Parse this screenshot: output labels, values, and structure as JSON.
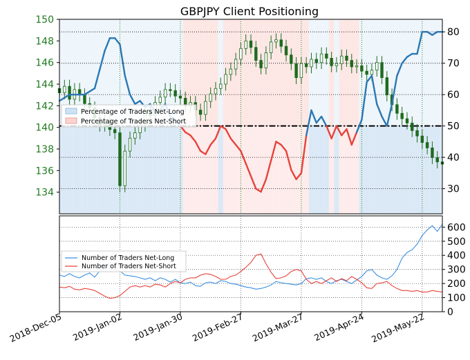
{
  "chart_data": [
    {
      "type": "line",
      "panel": "top",
      "title": "GBPJPY Client Positioning",
      "left_axis": {
        "ticks": [
          134,
          136,
          138,
          140,
          142,
          144,
          146,
          148,
          150
        ],
        "range": [
          132,
          150
        ],
        "color": "#1f7a1f"
      },
      "right_axis": {
        "ticks": [
          30,
          40,
          50,
          60,
          70,
          80
        ],
        "range": [
          22,
          84
        ]
      },
      "reference_line": {
        "value": 50,
        "style": "dash-dot"
      },
      "legend": {
        "placement": "middle-left",
        "entries": [
          "Percentage of Traders Net-Long",
          "Percentage of Traders Net-Short"
        ]
      },
      "colors": {
        "net_long": "#2a77b4",
        "net_short": "#e8423a",
        "long_fill": "#cfe2f3",
        "short_fill": "#fbd4d0",
        "candle": "#1e6b1e"
      },
      "x": [
        "2018-Dec-05",
        "2018-Dec-07",
        "2018-Dec-10",
        "2018-Dec-12",
        "2018-Dec-14",
        "2018-Dec-17",
        "2018-Dec-19",
        "2018-Dec-21",
        "2018-Dec-24",
        "2018-Dec-26",
        "2018-Dec-28",
        "2018-Dec-31",
        "2019-Jan-02",
        "2019-Jan-04",
        "2019-Jan-07",
        "2019-Jan-09",
        "2019-Jan-11",
        "2019-Jan-14",
        "2019-Jan-16",
        "2019-Jan-18",
        "2019-Jan-21",
        "2019-Jan-23",
        "2019-Jan-25",
        "2019-Jan-28",
        "2019-Jan-30",
        "2019-Feb-01",
        "2019-Feb-04",
        "2019-Feb-06",
        "2019-Feb-08",
        "2019-Feb-11",
        "2019-Feb-13",
        "2019-Feb-15",
        "2019-Feb-18",
        "2019-Feb-20",
        "2019-Feb-22",
        "2019-Feb-25",
        "2019-Feb-27",
        "2019-Mar-01",
        "2019-Mar-04",
        "2019-Mar-06",
        "2019-Mar-08",
        "2019-Mar-11",
        "2019-Mar-13",
        "2019-Mar-15",
        "2019-Mar-18",
        "2019-Mar-20",
        "2019-Mar-22",
        "2019-Mar-25",
        "2019-Mar-27",
        "2019-Mar-29",
        "2019-Apr-01",
        "2019-Apr-03",
        "2019-Apr-05",
        "2019-Apr-08",
        "2019-Apr-10",
        "2019-Apr-12",
        "2019-Apr-15",
        "2019-Apr-17",
        "2019-Apr-19",
        "2019-Apr-22",
        "2019-Apr-24",
        "2019-Apr-26",
        "2019-Apr-29",
        "2019-May-01",
        "2019-May-03",
        "2019-May-06",
        "2019-May-08",
        "2019-May-10",
        "2019-May-13",
        "2019-May-15",
        "2019-May-17",
        "2019-May-20",
        "2019-May-22",
        "2019-May-24",
        "2019-May-27",
        "2019-May-29",
        "2019-May-31"
      ],
      "price_close": [
        143.2,
        143.8,
        142.6,
        143.5,
        143.0,
        142.2,
        141.8,
        140.9,
        140.2,
        140.6,
        139.8,
        139.5,
        134.6,
        137.8,
        139.0,
        139.5,
        140.2,
        141.5,
        141.1,
        142.3,
        142.8,
        143.5,
        143.4,
        142.9,
        142.7,
        142.0,
        142.3,
        141.6,
        141.2,
        142.4,
        143.1,
        143.6,
        144.0,
        144.9,
        145.4,
        146.3,
        147.3,
        148.0,
        147.4,
        146.2,
        145.5,
        146.9,
        147.9,
        148.1,
        147.5,
        146.7,
        145.9,
        144.6,
        145.9,
        145.6,
        146.3,
        146.0,
        146.8,
        146.4,
        145.7,
        145.9,
        146.6,
        146.2,
        145.6,
        145.7,
        145.2,
        144.9,
        145.3,
        146.0,
        144.6,
        143.0,
        142.1,
        141.3,
        140.8,
        140.4,
        139.7,
        139.2,
        138.6,
        138.1,
        137.2,
        136.8,
        136.6
      ],
      "series": [
        {
          "name": "Percentage of Traders Net-Long",
          "values": [
            58,
            59,
            60,
            60,
            60,
            60,
            61,
            62,
            68,
            74,
            78,
            78,
            76,
            66,
            60,
            57,
            58,
            56,
            57,
            54,
            55,
            57,
            53,
            52,
            50,
            48,
            47,
            45,
            42,
            41,
            44,
            46,
            50,
            49,
            46,
            44,
            42,
            38,
            34,
            30,
            29,
            33,
            39,
            45,
            44,
            42,
            36,
            33,
            35,
            47,
            55,
            51,
            53,
            50,
            46,
            50,
            47,
            49,
            44,
            48,
            52,
            64,
            66,
            57,
            53,
            50,
            57,
            66,
            70,
            72,
            73,
            73,
            80,
            80,
            79,
            80,
            80
          ]
        }
      ]
    },
    {
      "type": "line",
      "panel": "bottom",
      "y_axis": {
        "ticks": [
          0,
          100,
          200,
          300,
          400,
          500,
          600
        ],
        "range": [
          0,
          680
        ]
      },
      "x_tick_labels": [
        "2018-Dec-05",
        "2019-Jan-02",
        "2019-Jan-30",
        "2019-Feb-27",
        "2019-Mar-27",
        "2019-Apr-24",
        "2019-May-22"
      ],
      "legend": {
        "placement": "middle-left",
        "entries": [
          "Number of Traders Net-Long",
          "Number of Traders Net-Short"
        ]
      },
      "series": [
        {
          "name": "Number of Traders Net-Long",
          "color": "#3b8fe0",
          "values": [
            260,
            250,
            270,
            250,
            240,
            260,
            275,
            245,
            290,
            320,
            310,
            300,
            290,
            260,
            255,
            250,
            240,
            230,
            240,
            220,
            240,
            230,
            210,
            230,
            205,
            200,
            210,
            185,
            180,
            205,
            210,
            200,
            220,
            215,
            200,
            195,
            185,
            175,
            170,
            160,
            165,
            175,
            190,
            215,
            205,
            200,
            195,
            190,
            200,
            235,
            240,
            230,
            240,
            215,
            200,
            220,
            230,
            215,
            200,
            225,
            250,
            290,
            300,
            260,
            240,
            230,
            255,
            300,
            380,
            420,
            440,
            480,
            540,
            580,
            610,
            570,
            620
          ]
        },
        {
          "name": "Number of Traders Net-Short",
          "color": "#e8423a",
          "values": [
            175,
            170,
            180,
            160,
            155,
            165,
            160,
            150,
            130,
            110,
            95,
            100,
            115,
            145,
            175,
            185,
            175,
            185,
            175,
            195,
            190,
            175,
            200,
            215,
            205,
            230,
            240,
            240,
            260,
            270,
            265,
            250,
            230,
            230,
            250,
            260,
            285,
            315,
            350,
            400,
            410,
            340,
            280,
            235,
            240,
            255,
            285,
            300,
            290,
            230,
            200,
            215,
            200,
            220,
            240,
            215,
            235,
            220,
            250,
            230,
            205,
            170,
            165,
            200,
            205,
            215,
            185,
            165,
            150,
            150,
            145,
            150,
            140,
            140,
            150,
            145,
            140
          ]
        }
      ]
    }
  ]
}
